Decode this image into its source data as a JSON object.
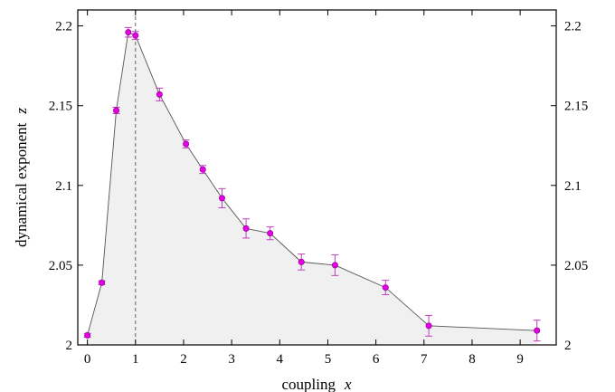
{
  "chart_data": {
    "type": "line",
    "title": "",
    "xlabel": "coupling",
    "xlabel_var": "x",
    "ylabel": "dynamical exponent",
    "ylabel_var": "z",
    "xlim": [
      -0.2,
      9.75
    ],
    "ylim": [
      2.0,
      2.21
    ],
    "x_ticks": [
      0,
      1,
      2,
      3,
      4,
      5,
      6,
      7,
      8,
      9
    ],
    "x_tick_labels": [
      "0",
      "1",
      "2",
      "3",
      "4",
      "5",
      "6",
      "7",
      "8",
      "9"
    ],
    "y_ticks": [
      2.0,
      2.05,
      2.1,
      2.15,
      2.2
    ],
    "y_tick_labels": [
      "2",
      "2.05",
      "2.1",
      "2.15",
      "2.2"
    ],
    "right_y_axis_mirrored": true,
    "grid": false,
    "legend": "none",
    "reference_line": {
      "x": 1,
      "style": "dashed"
    },
    "fill_under_curve": true,
    "colors": {
      "marker": "#e400e4",
      "errorbar": "#c040c0",
      "line": "#555555",
      "fill": "#f0f0f0"
    },
    "series": [
      {
        "x": [
          0.0,
          0.3,
          0.6,
          0.85,
          1.0,
          1.5,
          2.05,
          2.4,
          2.8,
          3.3,
          3.8,
          4.45,
          5.15,
          6.2,
          7.1,
          9.35
        ],
        "y": [
          2.006,
          2.039,
          2.147,
          2.196,
          2.194,
          2.157,
          2.126,
          2.11,
          2.092,
          2.073,
          2.07,
          2.052,
          2.05,
          2.036,
          2.012,
          2.009
        ],
        "err": [
          0.0012,
          0.0012,
          0.002,
          0.003,
          0.0025,
          0.004,
          0.0025,
          0.0025,
          0.006,
          0.006,
          0.004,
          0.005,
          0.0065,
          0.0045,
          0.0065,
          0.0065
        ]
      }
    ]
  }
}
